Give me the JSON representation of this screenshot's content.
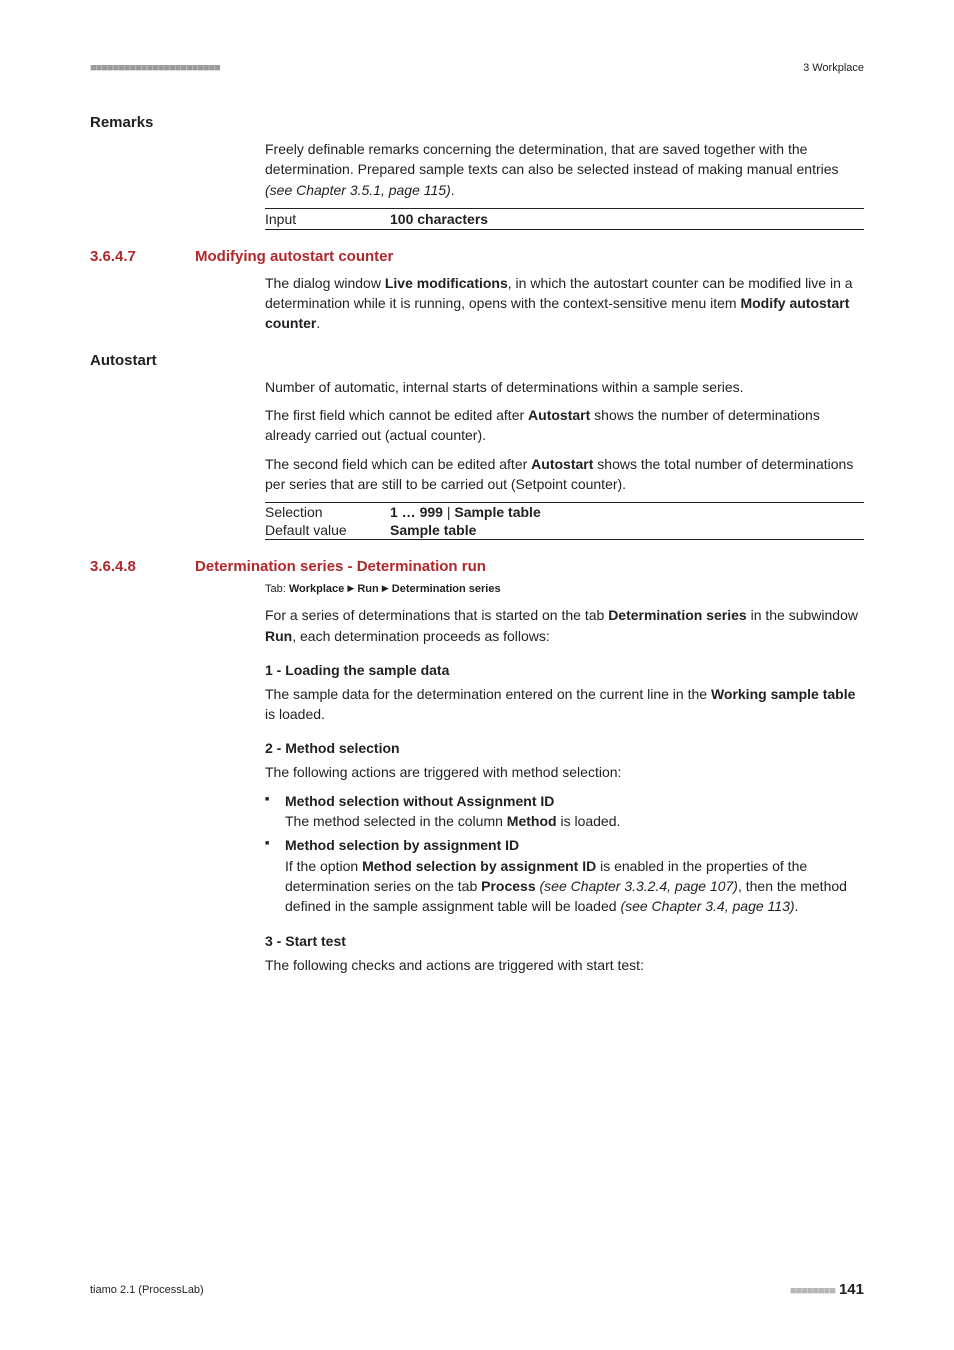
{
  "header": {
    "dots": "■■■■■■■■■■■■■■■■■■■■■■■",
    "right": "3 Workplace"
  },
  "remarks": {
    "heading": "Remarks",
    "para": "Freely definable remarks concerning the determination, that are saved together with the determination. Prepared sample texts can also be selected instead of making manual entries ",
    "ref": "(see Chapter 3.5.1, page 115)",
    "period": ".",
    "input_label": "Input",
    "input_value": "100 characters"
  },
  "s3647": {
    "num": "3.6.4.7",
    "title": "Modifying autostart counter",
    "para1a": "The dialog window ",
    "para1b": "Live modifications",
    "para1c": ", in which the autostart counter can be modified live in a determination while it is running, opens with the context-sensitive menu item ",
    "para1d": "Modify autostart counter",
    "para1e": "."
  },
  "autostart": {
    "heading": "Autostart",
    "para1": "Number of automatic, internal starts of determinations within a sample series.",
    "para2a": "The first field which cannot be edited after ",
    "para2b": "Autostart",
    "para2c": " shows the number of determinations already carried out (actual counter).",
    "para3a": "The second field which can be edited after ",
    "para3b": "Autostart",
    "para3c": " shows the total number of determinations per series that are still to be carried out (Setpoint counter).",
    "sel_label": "Selection",
    "sel_value_bold": "1 … 999",
    "sel_value_sep": " | ",
    "sel_value_bold2": "Sample table",
    "def_label": "Default value",
    "def_value": "Sample table"
  },
  "s3648": {
    "num": "3.6.4.8",
    "title": "Determination series - Determination run",
    "tab_prefix": "Tab: ",
    "tab_a": "Workplace",
    "tab_b": "Run",
    "tab_c": "Determination series",
    "para1a": "For a series of determinations that is started on the tab ",
    "para1b": "Determination series",
    "para1c": " in the subwindow ",
    "para1d": "Run",
    "para1e": ", each determination proceeds as follows:",
    "step1_h": "1 - Loading the sample data",
    "step1_a": "The sample data for the determination entered on the current line in the ",
    "step1_b": "Working sample table",
    "step1_c": " is loaded.",
    "step2_h": "2 - Method selection",
    "step2_intro": "The following actions are triggered with method selection:",
    "b1_h": "Method selection without Assignment ID",
    "b1_a": "The method selected in the column ",
    "b1_b": "Method",
    "b1_c": " is loaded.",
    "b2_h": "Method selection by assignment ID",
    "b2_a": "If the option ",
    "b2_b": "Method selection by assignment ID",
    "b2_c": " is enabled in the properties of the determination series on the tab ",
    "b2_d": "Process",
    "b2_e": " ",
    "b2_f": "(see Chapter 3.3.2.4, page 107)",
    "b2_g": ", then the method defined in the sample assignment table will be loaded ",
    "b2_h2": "(see Chapter 3.4, page 113)",
    "b2_i": ".",
    "step3_h": "3 - Start test",
    "step3_intro": "The following checks and actions are triggered with start test:"
  },
  "footer": {
    "left": "tiamo 2.1 (ProcessLab)",
    "dots": "■■■■■■■■",
    "page": "141"
  }
}
